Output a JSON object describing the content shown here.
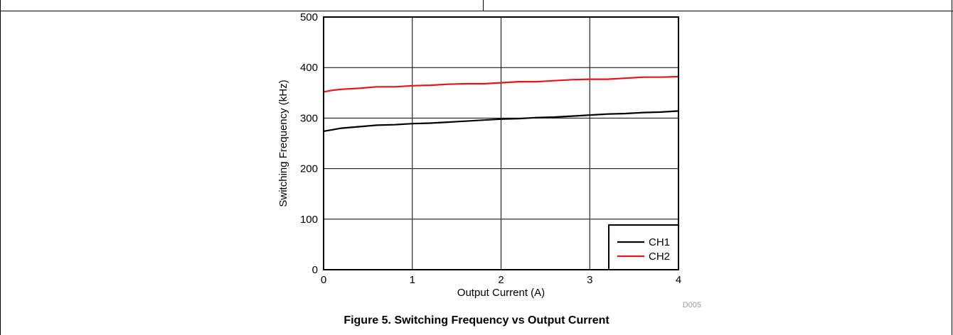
{
  "chart_data": {
    "type": "line",
    "xlabel": "Output Current (A)",
    "ylabel": "Switching Frequency (kHz)",
    "xlim": [
      0,
      4
    ],
    "ylim": [
      0,
      500
    ],
    "xticks": [
      0,
      1,
      2,
      3,
      4
    ],
    "yticks": [
      0,
      100,
      200,
      300,
      400,
      500
    ],
    "grid": true,
    "legend_position": "bottom-right",
    "series": [
      {
        "name": "CH1",
        "color": "#000000",
        "x": [
          0,
          0.1,
          0.2,
          0.4,
          0.6,
          0.8,
          1.0,
          1.2,
          1.4,
          1.6,
          1.8,
          2.0,
          2.2,
          2.4,
          2.6,
          2.8,
          3.0,
          3.2,
          3.4,
          3.6,
          3.8,
          4.0
        ],
        "y": [
          274,
          277,
          280,
          283,
          286,
          287,
          289,
          290,
          292,
          294,
          296,
          298,
          299,
          301,
          302,
          304,
          306,
          308,
          309,
          311,
          312,
          314
        ]
      },
      {
        "name": "CH2",
        "color": "#e8141b",
        "x": [
          0,
          0.1,
          0.2,
          0.4,
          0.6,
          0.8,
          1.0,
          1.2,
          1.4,
          1.6,
          1.8,
          2.0,
          2.2,
          2.4,
          2.6,
          2.8,
          3.0,
          3.2,
          3.4,
          3.6,
          3.8,
          4.0
        ],
        "y": [
          352,
          355,
          357,
          359,
          362,
          362,
          364,
          365,
          367,
          368,
          368,
          370,
          372,
          372,
          374,
          376,
          377,
          377,
          379,
          381,
          381,
          382
        ]
      }
    ],
    "watermark": "D005",
    "caption": "Figure 5. Switching Frequency vs Output Current"
  }
}
